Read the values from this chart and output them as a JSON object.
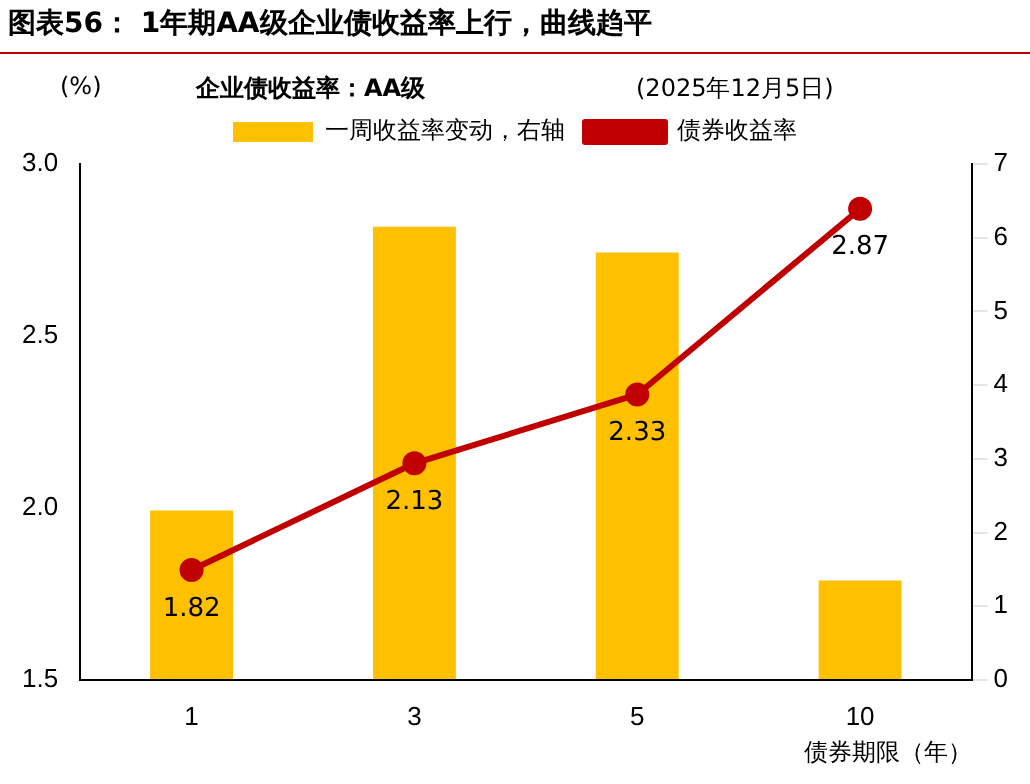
{
  "chart_data": {
    "type": "bar",
    "title": "图表56： 1年期AA级企业债收益率上行，曲线趋平",
    "subtitle": "企业债收益率：AA级",
    "ylabel": "(%)",
    "xlabel": "债券期限（年）",
    "annotations": [
      "(2025年12月5日)"
    ],
    "categories": [
      "1",
      "3",
      "5",
      "10"
    ],
    "series": [
      {
        "name": "一周收益率变动，右轴",
        "axis": "y2",
        "color": "#ffc000",
        "values": [
          2.3,
          6.15,
          5.8,
          1.35
        ]
      },
      {
        "name": "债券收益率",
        "type": "line",
        "axis": "y",
        "color": "#c00000",
        "marker": "circle",
        "values": [
          1.82,
          2.13,
          2.33,
          2.87
        ],
        "value_labels": [
          "1.82",
          "2.13",
          "2.33",
          "2.87"
        ]
      }
    ],
    "ylim": [
      1.5,
      3.0
    ],
    "yticks": [
      1.5,
      {
        "value": 2,
        "label": "2.0"
      },
      2.5,
      {
        "value": 3,
        "label": "3.0"
      }
    ],
    "y2lim": [
      0,
      7
    ],
    "y2ticks": [
      0,
      1,
      2,
      3,
      4,
      5,
      6,
      7
    ],
    "grid": false,
    "legend": "top"
  }
}
